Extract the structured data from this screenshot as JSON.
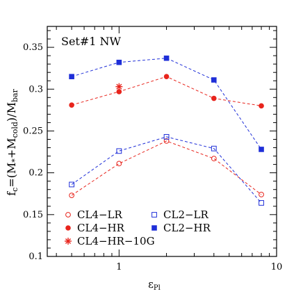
{
  "chart_data": {
    "type": "scatter",
    "annotation": "Set#1 NW",
    "xlabel": "ε",
    "xlabel_sub": "Pl",
    "ylabel": "f",
    "ylabel_sub": "c",
    "ylabel_rest": "=(M",
    "ylabel_star": "*",
    "ylabel_plus": "+M",
    "ylabel_cold": "cold",
    "ylabel_close": ")/M",
    "ylabel_bar": "bar",
    "xscale": "log",
    "xlim": [
      0.35,
      10
    ],
    "ylim": [
      0.1,
      0.375
    ],
    "x_ticks": [
      1,
      10
    ],
    "x_tick_labels": [
      "1",
      "10"
    ],
    "y_ticks": [
      0.1,
      0.15,
      0.2,
      0.25,
      0.3,
      0.35
    ],
    "y_tick_labels": [
      "0.1",
      "0.15",
      "0.2",
      "0.25",
      "0.3",
      "0.35"
    ],
    "colors": {
      "red": "#e8241c",
      "blue": "#1f2fd8"
    },
    "series": [
      {
        "name": "CL4−LR",
        "marker": "open-circle",
        "color": "red",
        "line": true,
        "x": [
          0.5,
          1,
          2,
          4,
          8
        ],
        "y": [
          0.173,
          0.211,
          0.238,
          0.217,
          0.174
        ]
      },
      {
        "name": "CL2−LR",
        "marker": "open-square",
        "color": "blue",
        "line": true,
        "x": [
          0.5,
          1,
          2,
          4,
          8
        ],
        "y": [
          0.186,
          0.226,
          0.243,
          0.229,
          0.164
        ]
      },
      {
        "name": "CL4−HR",
        "marker": "filled-circle",
        "color": "red",
        "line": true,
        "x": [
          0.5,
          1,
          2,
          4,
          8
        ],
        "y": [
          0.281,
          0.297,
          0.315,
          0.289,
          0.28
        ]
      },
      {
        "name": "CL2−HR",
        "marker": "filled-square",
        "color": "blue",
        "line": true,
        "x": [
          0.5,
          1,
          2,
          4,
          8
        ],
        "y": [
          0.315,
          0.332,
          0.337,
          0.311,
          0.228
        ]
      },
      {
        "name": "CL4−HR−10G",
        "marker": "asterisk",
        "color": "red",
        "line": false,
        "x": [
          1
        ],
        "y": [
          0.303
        ]
      }
    ],
    "legend": [
      {
        "series": 0
      },
      {
        "series": 1
      },
      {
        "series": 2
      },
      {
        "series": 3
      },
      {
        "series": 4
      }
    ]
  }
}
